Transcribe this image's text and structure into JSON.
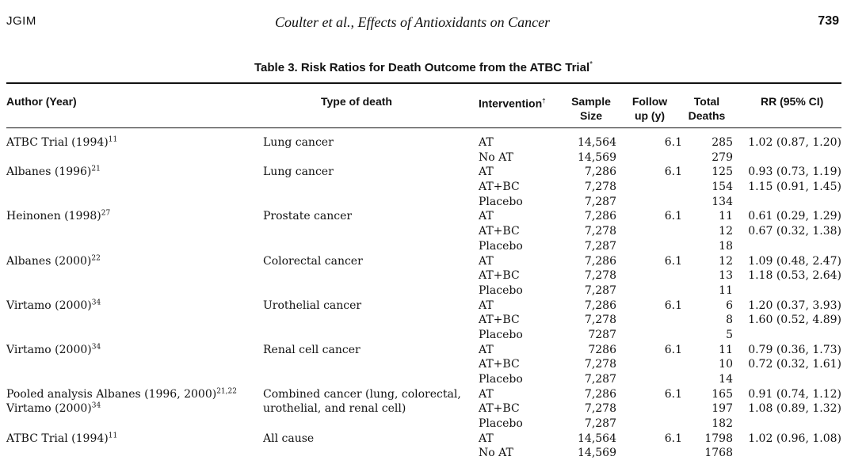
{
  "header": {
    "journal": "JGIM",
    "running_title": "Coulter et al., Effects of Antioxidants on Cancer",
    "page_number": "739"
  },
  "caption": {
    "label": "Table 3.",
    "title": "Risk Ratios for Death Outcome from the ATBC Trial",
    "mark": "*"
  },
  "columns": {
    "author": "Author (Year)",
    "type": "Type of death",
    "intervention": "Intervention",
    "intervention_mark": "†",
    "sample_size_1": "Sample",
    "sample_size_2": "Size",
    "follow_up_1": "Follow",
    "follow_up_2": "up (y)",
    "deaths_1": "Total",
    "deaths_2": "Deaths",
    "rr": "RR (95% CI)"
  },
  "rows": [
    {
      "author": "ATBC Trial (1994)",
      "ref": "11",
      "type": "Lung cancer",
      "intervention": "AT",
      "size": "14,564",
      "follow_up": "6.1",
      "deaths": "285",
      "rr": "1.02 (0.87, 1.20)"
    },
    {
      "author": "",
      "ref": "",
      "type": "",
      "intervention": "No AT",
      "size": "14,569",
      "follow_up": "",
      "deaths": "279",
      "rr": ""
    },
    {
      "author": "Albanes (1996)",
      "ref": "21",
      "type": "Lung cancer",
      "intervention": "AT",
      "size": "7,286",
      "follow_up": "6.1",
      "deaths": "125",
      "rr": "0.93 (0.73, 1.19)"
    },
    {
      "author": "",
      "ref": "",
      "type": "",
      "intervention": "AT+BC",
      "size": "7,278",
      "follow_up": "",
      "deaths": "154",
      "rr": "1.15 (0.91, 1.45)"
    },
    {
      "author": "",
      "ref": "",
      "type": "",
      "intervention": "Placebo",
      "size": "7,287",
      "follow_up": "",
      "deaths": "134",
      "rr": ""
    },
    {
      "author": "Heinonen (1998)",
      "ref": "27",
      "type": "Prostate cancer",
      "intervention": "AT",
      "size": "7,286",
      "follow_up": "6.1",
      "deaths": "11",
      "rr": "0.61 (0.29, 1.29)"
    },
    {
      "author": "",
      "ref": "",
      "type": "",
      "intervention": "AT+BC",
      "size": "7,278",
      "follow_up": "",
      "deaths": "12",
      "rr": "0.67 (0.32, 1.38)"
    },
    {
      "author": "",
      "ref": "",
      "type": "",
      "intervention": "Placebo",
      "size": "7,287",
      "follow_up": "",
      "deaths": "18",
      "rr": ""
    },
    {
      "author": "Albanes (2000)",
      "ref": "22",
      "type": "Colorectal cancer",
      "intervention": "AT",
      "size": "7,286",
      "follow_up": "6.1",
      "deaths": "12",
      "rr": "1.09 (0.48, 2.47)"
    },
    {
      "author": "",
      "ref": "",
      "type": "",
      "intervention": "AT+BC",
      "size": "7,278",
      "follow_up": "",
      "deaths": "13",
      "rr": "1.18 (0.53, 2.64)"
    },
    {
      "author": "",
      "ref": "",
      "type": "",
      "intervention": "Placebo",
      "size": "7,287",
      "follow_up": "",
      "deaths": "11",
      "rr": ""
    },
    {
      "author": "Virtamo (2000)",
      "ref": "34",
      "type": "Urothelial cancer",
      "intervention": "AT",
      "size": "7,286",
      "follow_up": "6.1",
      "deaths": "6",
      "rr": "1.20 (0.37, 3.93)"
    },
    {
      "author": "",
      "ref": "",
      "type": "",
      "intervention": "AT+BC",
      "size": "7,278",
      "follow_up": "",
      "deaths": "8",
      "rr": "1.60 (0.52, 4.89)"
    },
    {
      "author": "",
      "ref": "",
      "type": "",
      "intervention": "Placebo",
      "size": "7287",
      "follow_up": "",
      "deaths": "5",
      "rr": ""
    },
    {
      "author": "Virtamo (2000)",
      "ref": "34",
      "type": "Renal cell cancer",
      "intervention": "AT",
      "size": "7286",
      "follow_up": "6.1",
      "deaths": "11",
      "rr": "0.79 (0.36, 1.73)"
    },
    {
      "author": "",
      "ref": "",
      "type": "",
      "intervention": "AT+BC",
      "size": "7,278",
      "follow_up": "",
      "deaths": "10",
      "rr": "0.72 (0.32, 1.61)"
    },
    {
      "author": "",
      "ref": "",
      "type": "",
      "intervention": "Placebo",
      "size": "7,287",
      "follow_up": "",
      "deaths": "14",
      "rr": ""
    },
    {
      "author": "Pooled analysis Albanes (1996, 2000)",
      "ref": "21,22",
      "type": "Combined cancer (lung, colorectal,",
      "intervention": "AT",
      "size": "7,286",
      "follow_up": "6.1",
      "deaths": "165",
      "rr": "0.91 (0.74, 1.12)"
    },
    {
      "author": "Virtamo (2000)",
      "ref": "34",
      "type": "urothelial, and renal cell)",
      "intervention": "AT+BC",
      "size": "7,278",
      "follow_up": "",
      "deaths": "197",
      "rr": "1.08 (0.89, 1.32)"
    },
    {
      "author": "",
      "ref": "",
      "type": "",
      "intervention": "Placebo",
      "size": "7,287",
      "follow_up": "",
      "deaths": "182",
      "rr": ""
    },
    {
      "author": "ATBC Trial (1994)",
      "ref": "11",
      "type": "All cause",
      "intervention": "AT",
      "size": "14,564",
      "follow_up": "6.1",
      "deaths": "1798",
      "rr": "1.02 (0.96, 1.08)"
    },
    {
      "author": "",
      "ref": "",
      "type": "",
      "intervention": "No AT",
      "size": "14,569",
      "follow_up": "",
      "deaths": "1768",
      "rr": ""
    }
  ]
}
